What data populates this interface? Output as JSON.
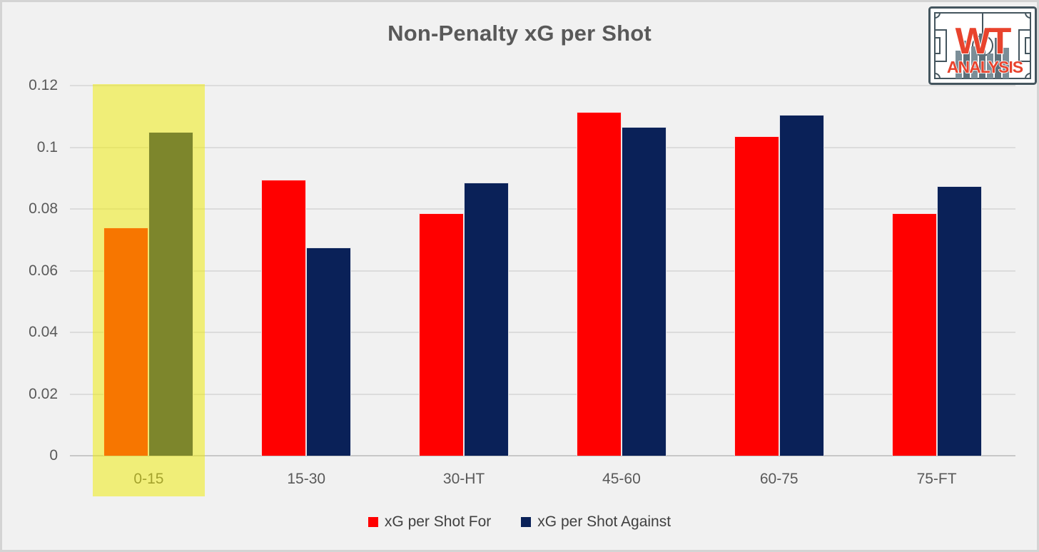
{
  "title": "Non-Penalty xG per Shot",
  "logo": {
    "line1": "WT",
    "line2": "ANALYSIS",
    "accent_color": "#e8432d",
    "pitch_color": "#44555e"
  },
  "colors": {
    "background": "#f1f1f1",
    "frame_border": "#d4d4d4",
    "gridline": "#dcdcdc",
    "axis_line": "#c7c7c7",
    "tick_text": "#595959",
    "legend_text": "#404040",
    "series_for": "#ff0000",
    "series_against": "#0a2158",
    "highlight_yellow": "#f0eb00"
  },
  "chart_data": {
    "type": "bar",
    "title": "Non-Penalty xG per Shot",
    "categories": [
      "0-15",
      "15-30",
      "30-HT",
      "45-60",
      "60-75",
      "75-FT"
    ],
    "series": [
      {
        "name": "xG per Shot For",
        "color": "#ff0000",
        "values": [
          0.074,
          0.0895,
          0.0785,
          0.1115,
          0.1035,
          0.0785
        ]
      },
      {
        "name": "xG per Shot Against",
        "color": "#0a2158",
        "values": [
          0.105,
          0.0675,
          0.0885,
          0.1065,
          0.1105,
          0.0875
        ]
      }
    ],
    "xlabel": "",
    "ylabel": "",
    "ylim": [
      0,
      0.12
    ],
    "yticks": [
      {
        "value": 0,
        "label": "0"
      },
      {
        "value": 0.02,
        "label": "0.02"
      },
      {
        "value": 0.04,
        "label": "0.04"
      },
      {
        "value": 0.06,
        "label": "0.06"
      },
      {
        "value": 0.08,
        "label": "0.08"
      },
      {
        "value": 0.1,
        "label": "0.1"
      },
      {
        "value": 0.12,
        "label": "0.12"
      }
    ],
    "grid": true,
    "legend_position": "bottom",
    "highlight": {
      "category": "0-15",
      "category_index": 0,
      "color": "#f0eb00",
      "opacity": 0.5
    }
  }
}
